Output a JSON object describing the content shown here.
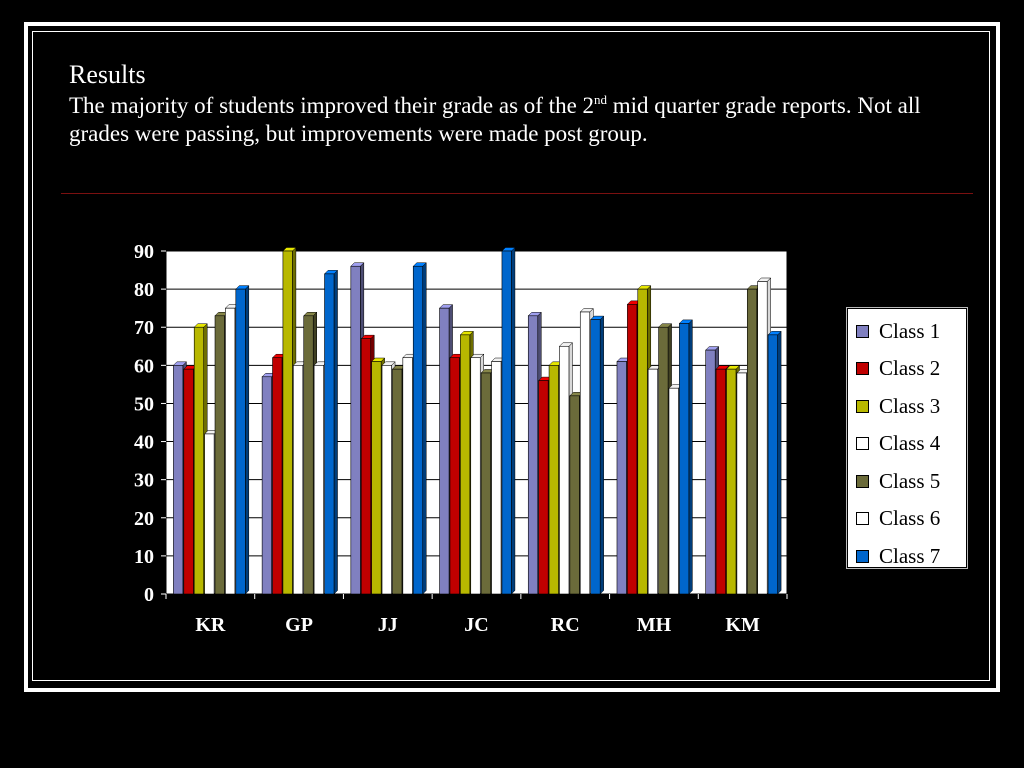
{
  "slide": {
    "title": "Results",
    "text_part1": "The majority of students improved their grade as of the 2",
    "text_sup": "nd",
    "text_part2": " mid quarter grade reports.  Not all grades were passing, but improvements were made post group."
  },
  "chart_data": {
    "type": "bar",
    "categories": [
      "KR",
      "GP",
      "JJ",
      "JC",
      "RC",
      "MH",
      "KM"
    ],
    "ylim": [
      0,
      90
    ],
    "yticks": [
      0,
      10,
      20,
      30,
      40,
      50,
      60,
      70,
      80,
      90
    ],
    "grid": true,
    "legend_position": "right",
    "series": [
      {
        "name": "Class 1",
        "color": "#8080c0",
        "values": [
          60,
          57,
          86,
          75,
          73,
          61,
          64
        ]
      },
      {
        "name": "Class 2",
        "color": "#c00000",
        "values": [
          59,
          62,
          67,
          62,
          56,
          76,
          59
        ]
      },
      {
        "name": "Class 3",
        "color": "#b8b800",
        "values": [
          70,
          90,
          61,
          68,
          60,
          80,
          59
        ]
      },
      {
        "name": "Class 4",
        "color": "#ffffff",
        "values": [
          42,
          60,
          60,
          62,
          65,
          59,
          58
        ]
      },
      {
        "name": "Class 5",
        "color": "#6b6b3a",
        "values": [
          73,
          73,
          59,
          58,
          52,
          70,
          80
        ]
      },
      {
        "name": "Class 6",
        "color": "#ffffff",
        "values": [
          75,
          60,
          62,
          61,
          74,
          54,
          82
        ]
      },
      {
        "name": "Class 7",
        "color": "#0066cc",
        "values": [
          80,
          84,
          86,
          90,
          72,
          71,
          68
        ]
      }
    ]
  }
}
